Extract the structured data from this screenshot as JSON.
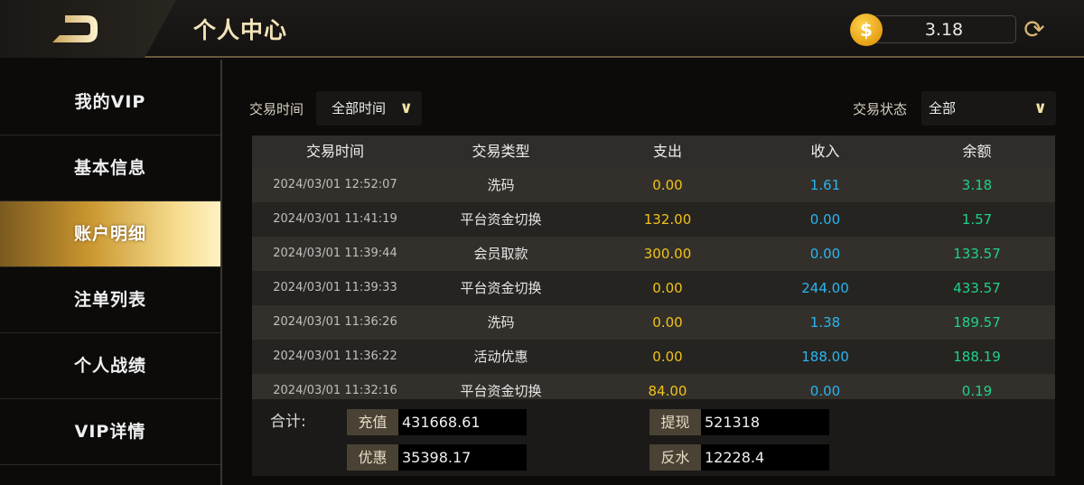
{
  "header": {
    "title": "个人中心",
    "balance": "3.18",
    "coin_icon": "dollar-coin-icon",
    "refresh_icon": "refresh-icon",
    "back_icon": "back-icon"
  },
  "sidebar": {
    "items": [
      {
        "label": "我的VIP"
      },
      {
        "label": "基本信息"
      },
      {
        "label": "账户明细",
        "active": true
      },
      {
        "label": "注单列表"
      },
      {
        "label": "个人战绩"
      },
      {
        "label": "VIP详情"
      }
    ]
  },
  "filters": {
    "time_label": "交易时间",
    "time_value": "全部时间",
    "status_label": "交易状态",
    "status_value": "全部"
  },
  "table": {
    "columns": [
      "交易时间",
      "交易类型",
      "支出",
      "收入",
      "余额"
    ],
    "rows": [
      [
        "2024/03/01 12:52:07",
        "洗码",
        "0.00",
        "1.61",
        "3.18"
      ],
      [
        "2024/03/01 11:41:19",
        "平台资金切换",
        "132.00",
        "0.00",
        "1.57"
      ],
      [
        "2024/03/01 11:39:44",
        "会员取款",
        "300.00",
        "0.00",
        "133.57"
      ],
      [
        "2024/03/01 11:39:33",
        "平台资金切换",
        "0.00",
        "244.00",
        "433.57"
      ],
      [
        "2024/03/01 11:36:26",
        "洗码",
        "0.00",
        "1.38",
        "189.57"
      ],
      [
        "2024/03/01 11:36:22",
        "活动优惠",
        "0.00",
        "188.00",
        "188.19"
      ],
      [
        "2024/03/01 11:32:16",
        "平台资金切换",
        "84.00",
        "0.00",
        "0.19"
      ]
    ]
  },
  "summary": {
    "label": "合计:",
    "recharge_label": "充值",
    "recharge": "431668.61",
    "withdraw_label": "提现",
    "withdraw": "521318",
    "bonus_label": "优惠",
    "bonus": "35398.17",
    "rebate_label": "反水",
    "rebate": "12228.4"
  },
  "colors": {
    "accent_gold": "#d6b574",
    "expense": "#f0c21a",
    "income": "#29b5f0",
    "balance": "#1fd28a"
  }
}
